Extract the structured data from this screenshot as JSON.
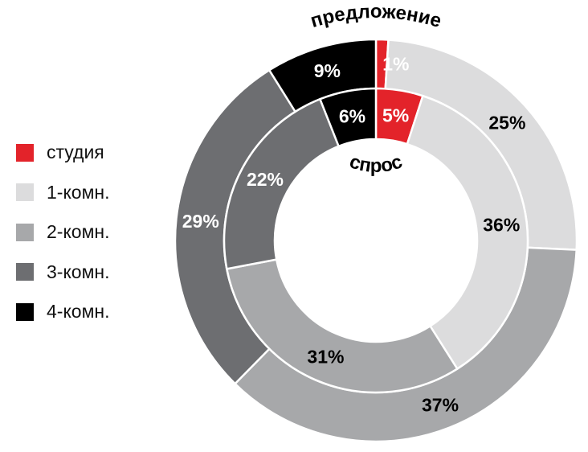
{
  "chart_data": {
    "type": "pie",
    "variant": "double-donut",
    "categories": [
      "студия",
      "1-комн.",
      "2-комн.",
      "3-комн.",
      "4-комн."
    ],
    "colors": [
      "#e3232a",
      "#dcdcdd",
      "#a7a8aa",
      "#6d6e71",
      "#000000"
    ],
    "label_colors": [
      "#ffffff",
      "#000000",
      "#000000",
      "#ffffff",
      "#ffffff"
    ],
    "series": [
      {
        "name": "предложение",
        "ring": "outer",
        "values": [
          1,
          25,
          37,
          29,
          9
        ],
        "labels": [
          "1%",
          "25%",
          "37%",
          "29%",
          "9%"
        ]
      },
      {
        "name": "спрос",
        "ring": "inner",
        "values": [
          5,
          36,
          31,
          22,
          6
        ],
        "labels": [
          "5%",
          "36%",
          "31%",
          "22%",
          "6%"
        ]
      }
    ],
    "legend_position": "left"
  }
}
